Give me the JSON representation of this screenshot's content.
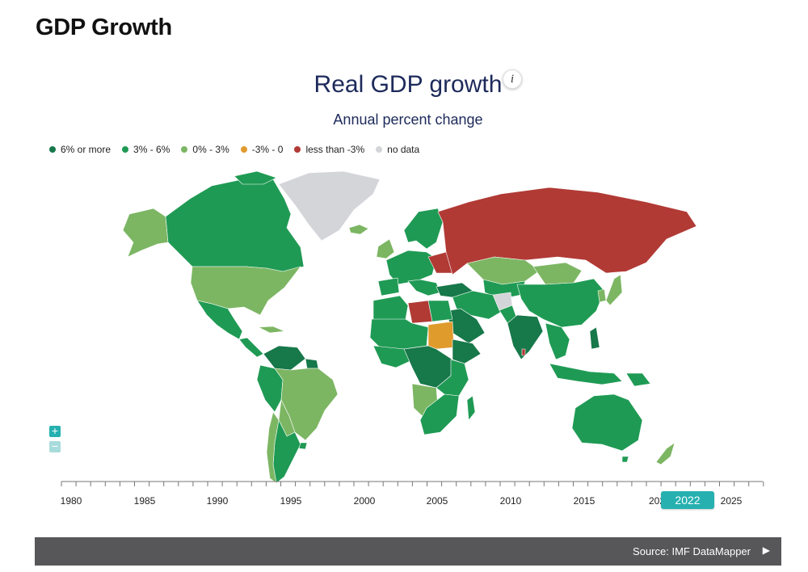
{
  "page": {
    "title": "GDP Growth"
  },
  "map": {
    "title": "Real GDP growth",
    "subtitle": "Annual percent change",
    "info_icon": "i",
    "legend": [
      {
        "label": "6% or more",
        "color": "#17784a"
      },
      {
        "label": "3% - 6%",
        "color": "#1f9a54"
      },
      {
        "label": "0% - 3%",
        "color": "#7cb663"
      },
      {
        "label": "-3% - 0",
        "color": "#e09b2d"
      },
      {
        "label": "less than -3%",
        "color": "#b13a35"
      },
      {
        "label": "no data",
        "color": "#d4d5d9"
      }
    ],
    "zoom_in_label": "+",
    "zoom_out_label": "−"
  },
  "timeline": {
    "ticks": [
      "1980",
      "1985",
      "1990",
      "1995",
      "2000",
      "2005",
      "2010",
      "2015",
      "202",
      "2025"
    ],
    "selected_year": "2022"
  },
  "source": {
    "label": "Source: IMF DataMapper",
    "arrow_icon": "play-arrow-icon"
  }
}
